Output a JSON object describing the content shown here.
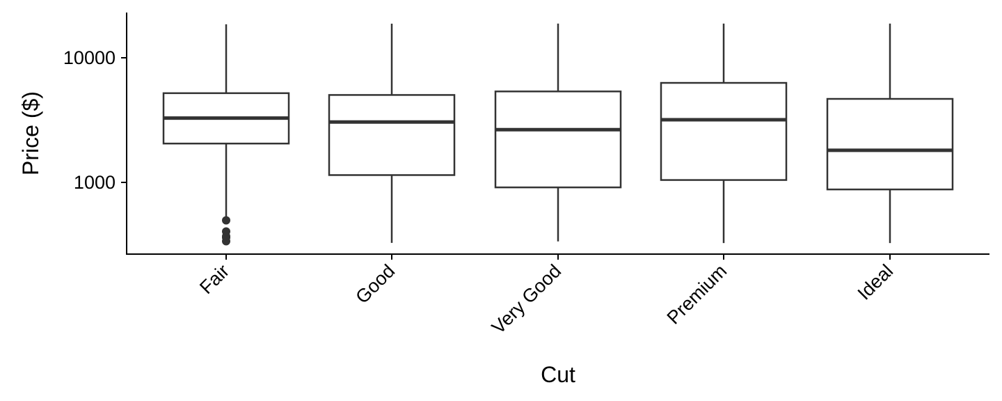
{
  "chart_data": {
    "type": "boxplot",
    "title": "",
    "xlabel": "Cut",
    "ylabel": "Price ($)",
    "yscale": "log10",
    "ylim": [
      300,
      23000
    ],
    "yticks": [
      1000,
      10000
    ],
    "ytick_labels": [
      "1000",
      "10000"
    ],
    "categories": [
      "Fair",
      "Good",
      "Very Good",
      "Premium",
      "Ideal"
    ],
    "boxes": [
      {
        "category": "Fair",
        "whisker_low": 500,
        "q1": 2050,
        "median": 3280,
        "q3": 5200,
        "whisker_high": 18570,
        "outliers": [
          337,
          361,
          369,
          404,
          496
        ]
      },
      {
        "category": "Good",
        "whisker_low": 327,
        "q1": 1145,
        "median": 3050,
        "q3": 5030,
        "whisker_high": 18790,
        "outliers": []
      },
      {
        "category": "Very Good",
        "whisker_low": 336,
        "q1": 912,
        "median": 2650,
        "q3": 5370,
        "whisker_high": 18820,
        "outliers": []
      },
      {
        "category": "Premium",
        "whisker_low": 326,
        "q1": 1045,
        "median": 3185,
        "q3": 6290,
        "whisker_high": 18820,
        "outliers": []
      },
      {
        "category": "Ideal",
        "whisker_low": 326,
        "q1": 878,
        "median": 1810,
        "q3": 4680,
        "whisker_high": 18810,
        "outliers": []
      }
    ],
    "grid": false,
    "legend": "none"
  },
  "colors": {
    "box_stroke": "#333333",
    "box_fill": "#ffffff",
    "axis": "#000000"
  }
}
